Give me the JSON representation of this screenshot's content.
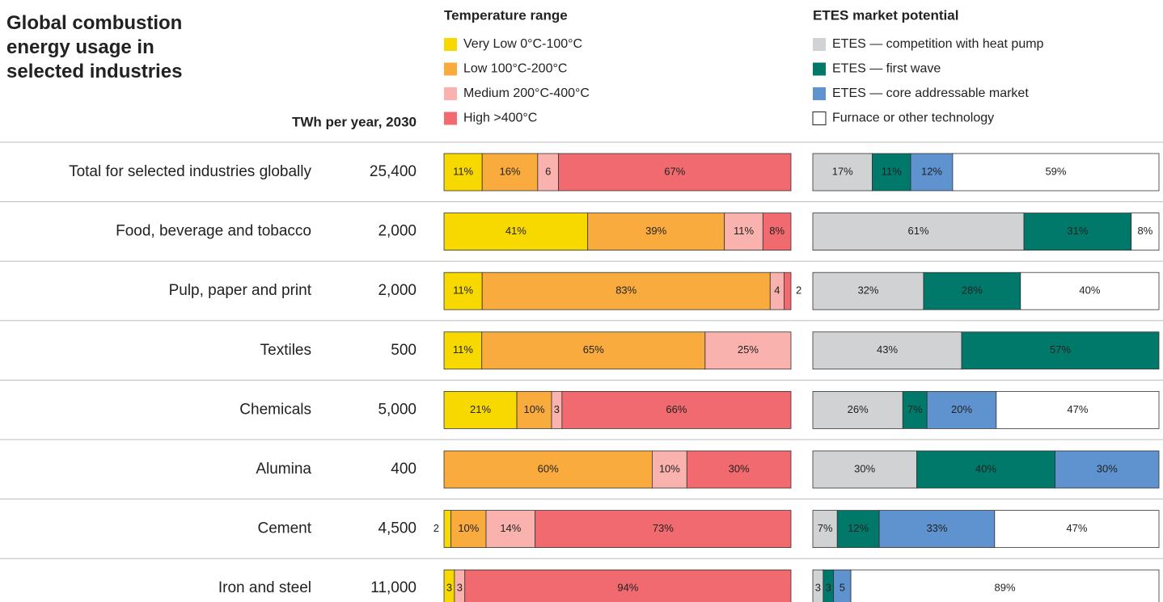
{
  "title": "Global combustion energy usage in selected industries",
  "table": {
    "header": "TWh per year, 2030",
    "rows": [
      {
        "category": "Total for selected industries globally",
        "value": 25400,
        "label": "25,400"
      },
      {
        "category": "Food, beverage and tobacco",
        "value": 2000,
        "label": "2,000"
      },
      {
        "category": "Pulp, paper and print",
        "value": 2000,
        "label": "2,000"
      },
      {
        "category": "Textiles",
        "value": 500,
        "label": "500"
      },
      {
        "category": "Chemicals",
        "value": 5000,
        "label": "5,000"
      },
      {
        "category": "Alumina",
        "value": 400,
        "label": "400"
      },
      {
        "category": "Cement",
        "value": 4500,
        "label": "4,500"
      },
      {
        "category": "Iron and steel",
        "value": 11000,
        "label": "11,000"
      }
    ]
  },
  "chart_data": [
    {
      "type": "bar",
      "orientation": "horizontal",
      "stacked": true,
      "title": "Temperature range",
      "series": [
        {
          "name": "Very Low 0°C-100°C",
          "color": "#f7d900",
          "values": [
            11,
            41,
            11,
            11,
            21,
            null,
            2,
            3
          ],
          "value_labels": [
            "11%",
            "41%",
            "11%",
            "11%",
            "21%",
            null,
            "2",
            "3"
          ]
        },
        {
          "name": "Low 100°C-200°C",
          "color": "#f9ac3d",
          "values": [
            16,
            39,
            83,
            65,
            10,
            60,
            10,
            null
          ],
          "value_labels": [
            "16%",
            "39%",
            "83%",
            "65%",
            "10%",
            "60%",
            "10%",
            null
          ]
        },
        {
          "name": "Medium 200°C-400°C",
          "color": "#f9b2ad",
          "values": [
            6,
            11,
            4,
            25,
            3,
            10,
            14,
            3
          ],
          "value_labels": [
            "6",
            "11%",
            "4",
            "25%",
            "3",
            "10%",
            "14%",
            "3"
          ]
        },
        {
          "name": "High >400°C",
          "color": "#f06a6f",
          "values": [
            67,
            8,
            2,
            null,
            66,
            30,
            73,
            94
          ],
          "value_labels": [
            "67%",
            "8%",
            "2",
            null,
            "66%",
            "30%",
            "73%",
            "94%"
          ]
        }
      ]
    },
    {
      "type": "bar",
      "orientation": "horizontal",
      "stacked": true,
      "title": "ETES market potential",
      "series": [
        {
          "name": "ETES — competition with heat pump",
          "color": "#d1d2d4",
          "values": [
            17,
            61,
            32,
            43,
            26,
            30,
            7,
            3
          ],
          "value_labels": [
            "17%",
            "61%",
            "32%",
            "43%",
            "26%",
            "30%",
            "7%",
            "3"
          ]
        },
        {
          "name": "ETES — first wave",
          "color": "#00786a",
          "values": [
            11,
            31,
            28,
            57,
            7,
            40,
            12,
            3
          ],
          "value_labels": [
            "11%",
            "31%",
            "28%",
            "57%",
            "7%",
            "40%",
            "12%",
            "3"
          ]
        },
        {
          "name": "ETES — core addressable market",
          "color": "#5f93cf",
          "values": [
            12,
            null,
            null,
            null,
            20,
            30,
            33,
            5
          ],
          "value_labels": [
            "12%",
            null,
            null,
            null,
            "20%",
            "30%",
            "33%",
            "5"
          ]
        },
        {
          "name": "Furnace or other technology",
          "color": "#ffffff",
          "values": [
            59,
            8,
            40,
            null,
            47,
            null,
            47,
            89
          ],
          "value_labels": [
            "59%",
            "8%",
            "40%",
            null,
            "47%",
            null,
            "47%",
            "89%"
          ]
        }
      ]
    }
  ]
}
